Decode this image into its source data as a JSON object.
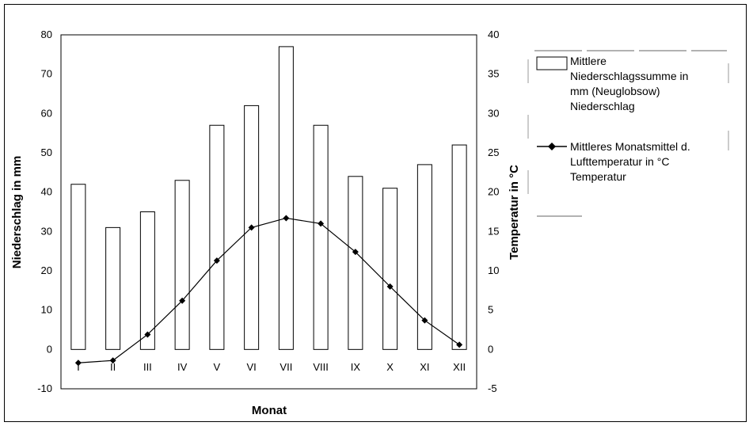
{
  "chart_data": {
    "type": "bar+line",
    "categories": [
      "I",
      "II",
      "III",
      "IV",
      "V",
      "VI",
      "VII",
      "VIII",
      "IX",
      "X",
      "XI",
      "XII"
    ],
    "series": [
      {
        "name": "Mittlere Niederschlagssumme in mm (Neuglobsow) Niederschlag",
        "type": "bar",
        "axis": "left",
        "values": [
          42,
          31,
          35,
          43,
          57,
          62,
          77,
          57,
          44,
          41,
          47,
          52
        ]
      },
      {
        "name": "Mittleres Monatsmittel d. Lufttemperatur in °C Temperatur",
        "type": "line",
        "axis": "right",
        "values": [
          -1.7,
          -1.4,
          1.9,
          6.2,
          11.3,
          15.5,
          16.7,
          16.0,
          12.4,
          8.0,
          3.7,
          0.6
        ]
      }
    ],
    "xlabel": "Monat",
    "ylabel_left": "Niederschlag in mm",
    "ylabel_right": "Temperatur in °C",
    "ylim_left": [
      -10,
      80
    ],
    "ylim_right": [
      -5,
      40
    ],
    "yticks_left": [
      "80",
      "70",
      "60",
      "50",
      "40",
      "30",
      "20",
      "10",
      "0",
      "-10"
    ],
    "yticks_right": [
      "40",
      "35",
      "30",
      "25",
      "20",
      "15",
      "10",
      "5",
      "0",
      "-5"
    ],
    "legend_lines": [
      [
        "Mittlere",
        "Niederschlagssumme in",
        "mm (Neuglobsow)",
        "Niederschlag"
      ],
      [
        "Mittleres Monatsmittel d.",
        "Lufttemperatur in °C",
        "Temperatur"
      ]
    ],
    "legend_position": "right",
    "grid": false
  }
}
